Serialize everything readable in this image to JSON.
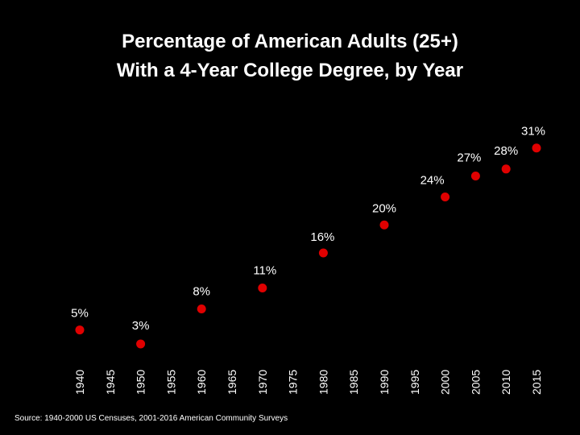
{
  "chart_data": {
    "type": "scatter",
    "title_lines": [
      "Percentage of American Adults (25+)",
      "With a 4-Year College Degree, by Year"
    ],
    "x": [
      1940,
      1950,
      1960,
      1970,
      1980,
      1990,
      2000,
      2005,
      2010,
      2015
    ],
    "values": [
      5,
      3,
      8,
      11,
      16,
      20,
      24,
      27,
      28,
      31
    ],
    "labels": [
      "5%",
      "3%",
      "8%",
      "11%",
      "16%",
      "20%",
      "24%",
      "27%",
      "28%",
      "31%"
    ],
    "x_ticks": [
      1940,
      1945,
      1950,
      1955,
      1960,
      1965,
      1970,
      1975,
      1980,
      1985,
      1990,
      1995,
      2000,
      2005,
      2010,
      2015
    ],
    "x_tick_labels": [
      "1940",
      "1945",
      "1950",
      "1955",
      "1960",
      "1965",
      "1970",
      "1975",
      "1980",
      "1985",
      "1990",
      "1995",
      "2000",
      "2005",
      "2010",
      "2015"
    ],
    "xlim": [
      1940,
      2015
    ],
    "ylim": [
      0,
      35
    ],
    "xlabel": "",
    "ylabel": "",
    "grid": false,
    "marker_color": "#e00000",
    "text_color": "#ffffff",
    "background": "#000000"
  },
  "source": "Source: 1940-2000 US Censuses, 2001-2016 American Community Surveys"
}
